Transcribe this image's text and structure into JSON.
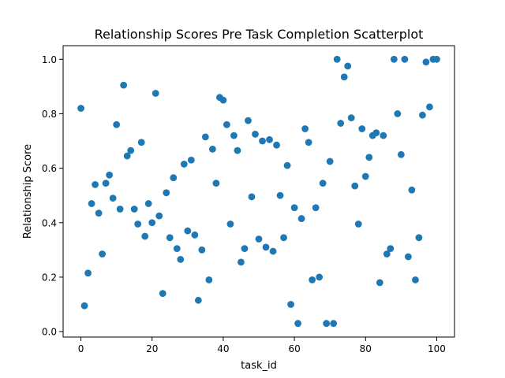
{
  "chart_data": {
    "type": "scatter",
    "title": "Relationship Scores Pre Task Completion Scatterplot",
    "xlabel": "task_id",
    "ylabel": "Relationship Score",
    "xlim": [
      -5,
      105
    ],
    "ylim": [
      -0.02,
      1.05
    ],
    "xticks": [
      0,
      20,
      40,
      60,
      80,
      100
    ],
    "xtick_labels": [
      "0",
      "20",
      "40",
      "60",
      "80",
      "100"
    ],
    "yticks": [
      0.0,
      0.2,
      0.4,
      0.6,
      0.8,
      1.0
    ],
    "ytick_labels": [
      "0.0",
      "0.2",
      "0.4",
      "0.6",
      "0.8",
      "1.0"
    ],
    "grid": false,
    "marker_color": "#1f77b4",
    "points": [
      [
        0,
        0.82
      ],
      [
        1,
        0.095
      ],
      [
        2,
        0.215
      ],
      [
        3,
        0.47
      ],
      [
        4,
        0.54
      ],
      [
        5,
        0.435
      ],
      [
        6,
        0.285
      ],
      [
        7,
        0.545
      ],
      [
        8,
        0.575
      ],
      [
        9,
        0.49
      ],
      [
        10,
        0.76
      ],
      [
        11,
        0.45
      ],
      [
        12,
        0.905
      ],
      [
        13,
        0.645
      ],
      [
        14,
        0.665
      ],
      [
        15,
        0.45
      ],
      [
        16,
        0.395
      ],
      [
        17,
        0.695
      ],
      [
        18,
        0.35
      ],
      [
        19,
        0.47
      ],
      [
        20,
        0.4
      ],
      [
        21,
        0.875
      ],
      [
        22,
        0.425
      ],
      [
        23,
        0.14
      ],
      [
        24,
        0.51
      ],
      [
        25,
        0.345
      ],
      [
        26,
        0.565
      ],
      [
        27,
        0.305
      ],
      [
        28,
        0.265
      ],
      [
        29,
        0.615
      ],
      [
        30,
        0.37
      ],
      [
        31,
        0.63
      ],
      [
        32,
        0.355
      ],
      [
        33,
        0.115
      ],
      [
        34,
        0.3
      ],
      [
        35,
        0.715
      ],
      [
        36,
        0.19
      ],
      [
        37,
        0.67
      ],
      [
        38,
        0.545
      ],
      [
        39,
        0.86
      ],
      [
        40,
        0.85
      ],
      [
        41,
        0.76
      ],
      [
        42,
        0.395
      ],
      [
        43,
        0.72
      ],
      [
        44,
        0.665
      ],
      [
        45,
        0.255
      ],
      [
        46,
        0.305
      ],
      [
        47,
        0.775
      ],
      [
        48,
        0.495
      ],
      [
        49,
        0.725
      ],
      [
        50,
        0.34
      ],
      [
        51,
        0.7
      ],
      [
        52,
        0.31
      ],
      [
        53,
        0.705
      ],
      [
        54,
        0.295
      ],
      [
        55,
        0.685
      ],
      [
        56,
        0.5
      ],
      [
        57,
        0.345
      ],
      [
        58,
        0.61
      ],
      [
        59,
        0.1
      ],
      [
        60,
        0.455
      ],
      [
        61,
        0.03
      ],
      [
        62,
        0.415
      ],
      [
        63,
        0.745
      ],
      [
        64,
        0.695
      ],
      [
        65,
        0.19
      ],
      [
        66,
        0.455
      ],
      [
        67,
        0.2
      ],
      [
        68,
        0.545
      ],
      [
        69,
        0.03
      ],
      [
        70,
        0.625
      ],
      [
        71,
        0.03
      ],
      [
        72,
        1.0
      ],
      [
        73,
        0.765
      ],
      [
        74,
        0.935
      ],
      [
        75,
        0.975
      ],
      [
        76,
        0.785
      ],
      [
        77,
        0.535
      ],
      [
        78,
        0.395
      ],
      [
        79,
        0.745
      ],
      [
        80,
        0.57
      ],
      [
        81,
        0.64
      ],
      [
        82,
        0.72
      ],
      [
        83,
        0.73
      ],
      [
        84,
        0.18
      ],
      [
        85,
        0.72
      ],
      [
        86,
        0.285
      ],
      [
        87,
        0.305
      ],
      [
        88,
        1.0
      ],
      [
        89,
        0.8
      ],
      [
        90,
        0.65
      ],
      [
        91,
        1.0
      ],
      [
        92,
        0.275
      ],
      [
        93,
        0.52
      ],
      [
        94,
        0.19
      ],
      [
        95,
        0.345
      ],
      [
        96,
        0.795
      ],
      [
        97,
        0.99
      ],
      [
        98,
        0.825
      ],
      [
        99,
        1.0
      ],
      [
        100,
        1.0
      ]
    ]
  }
}
